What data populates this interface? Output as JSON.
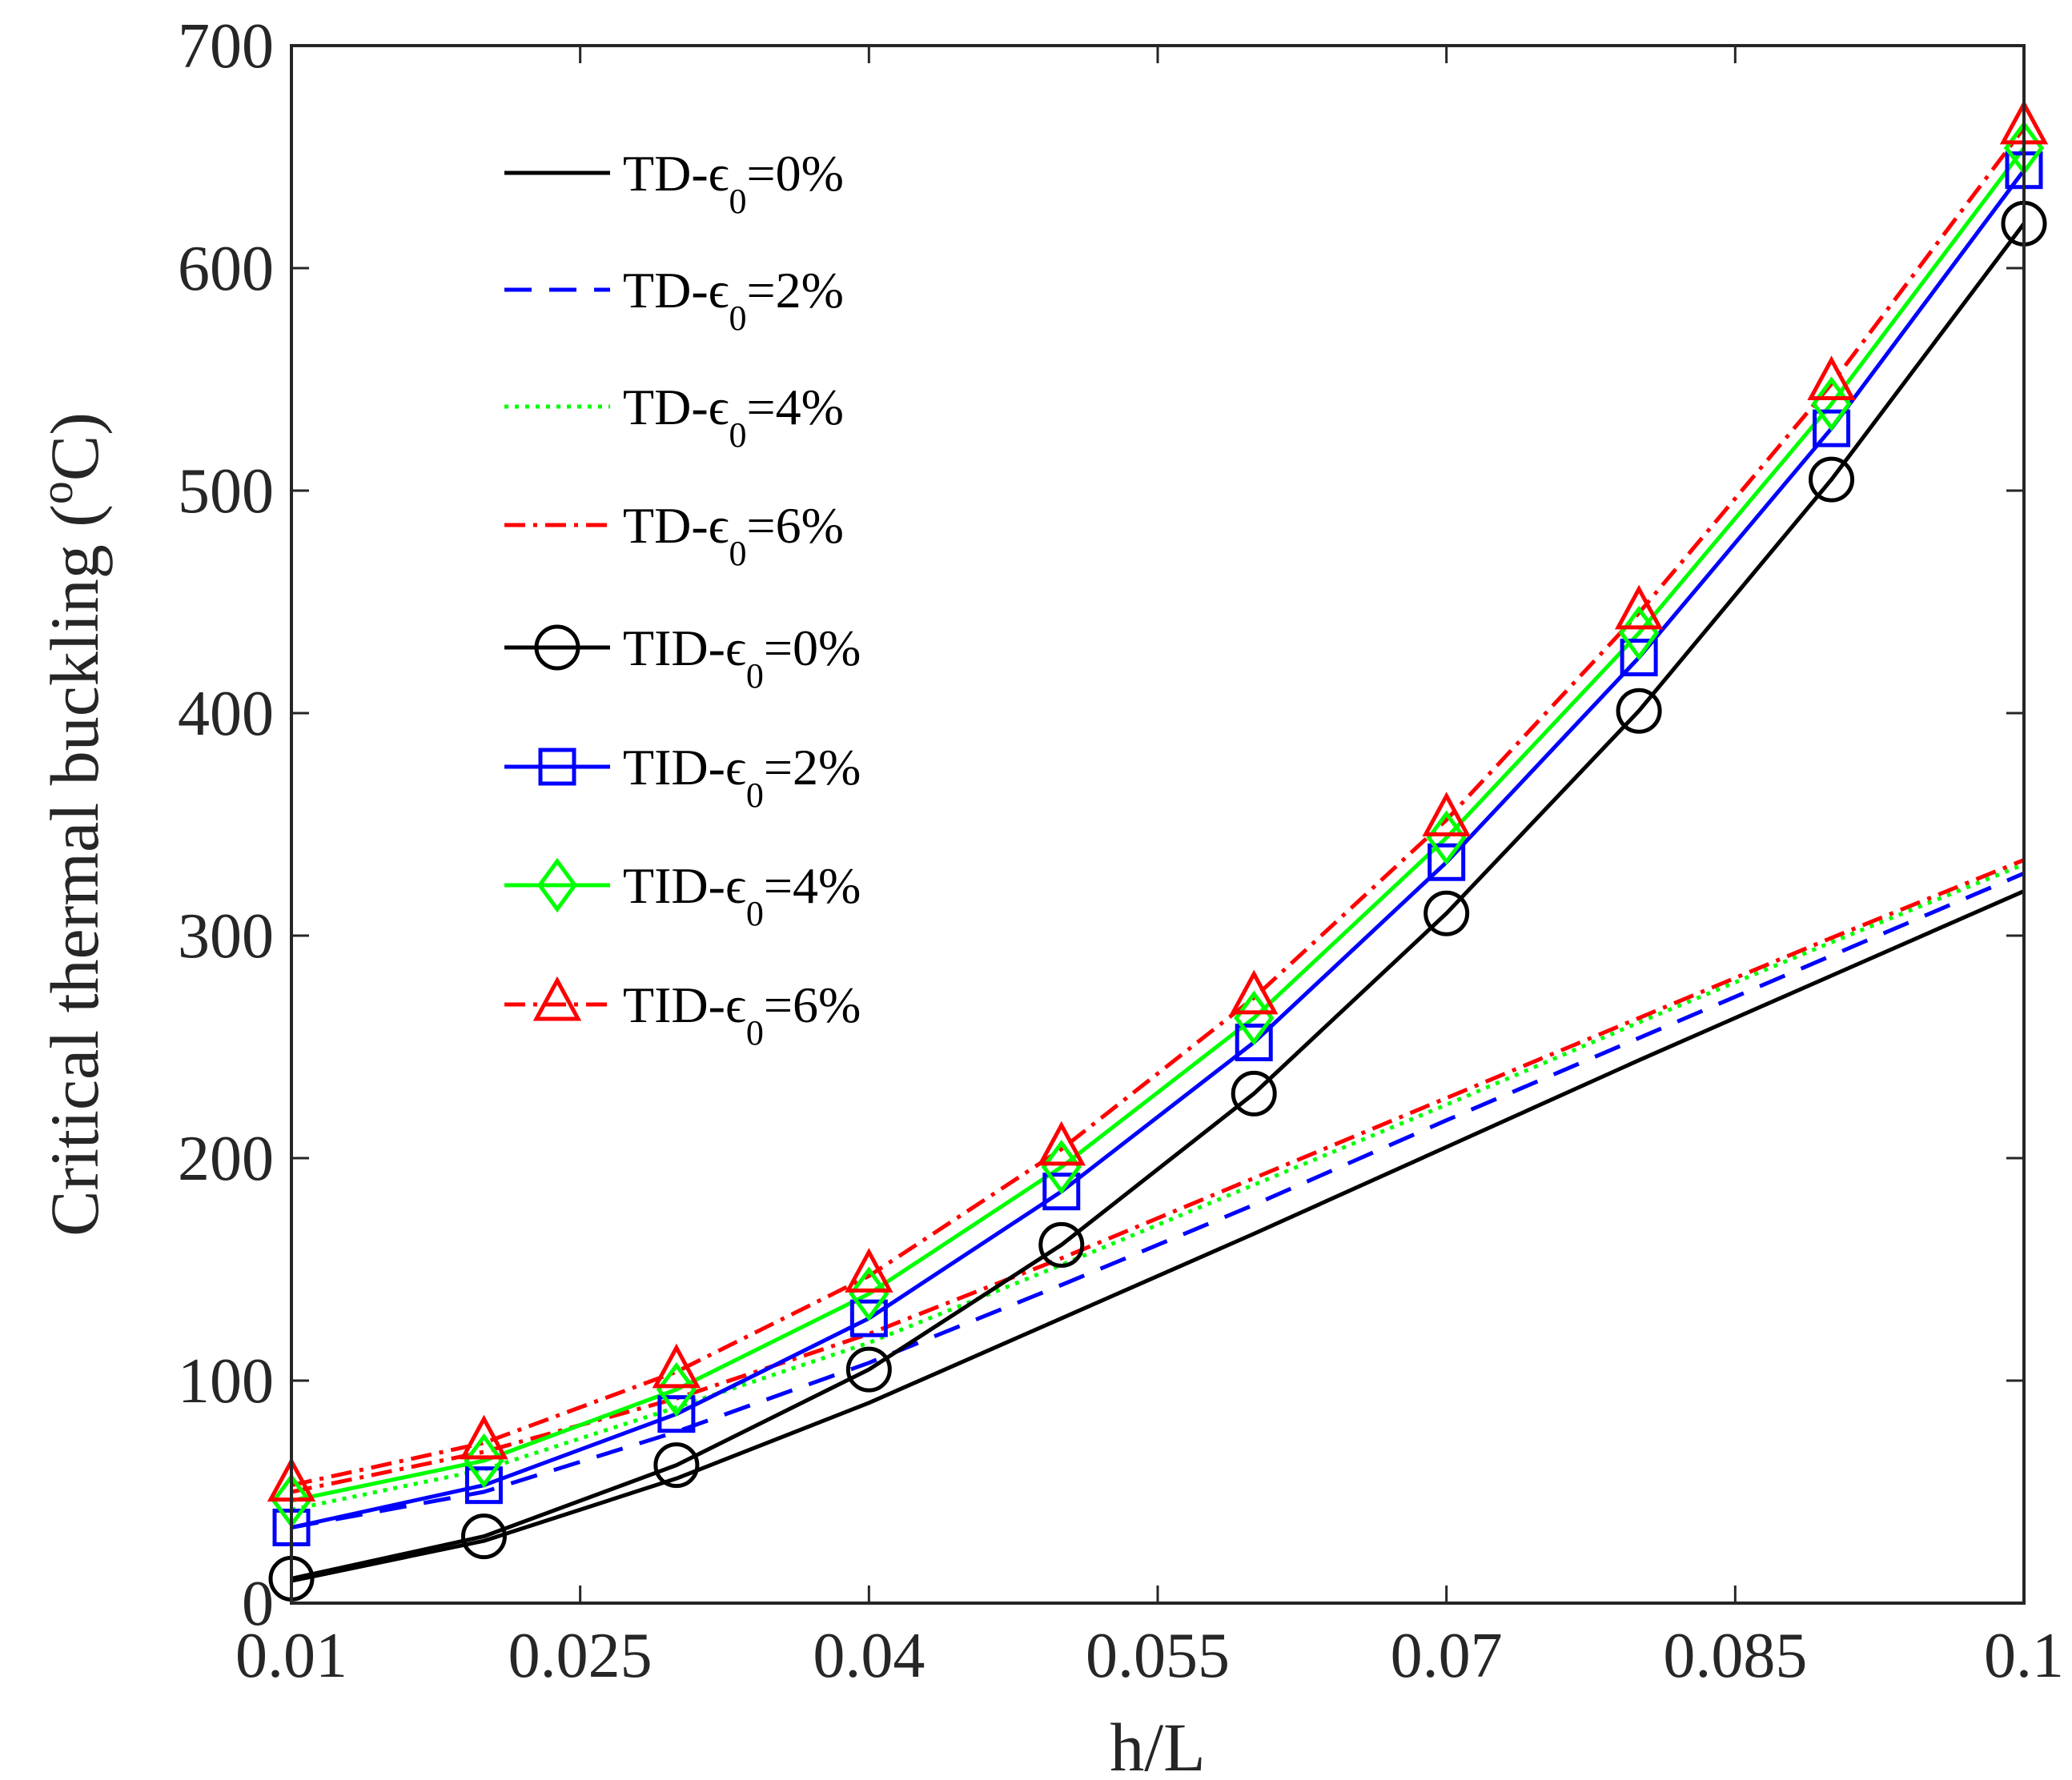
{
  "chart_data": {
    "type": "line",
    "title": "",
    "xlabel": "h/L",
    "ylabel_main": "Critical thermal buckling (",
    "ylabel_sup": "o",
    "ylabel_end": "C)",
    "xlim": [
      0.01,
      0.1
    ],
    "ylim": [
      0,
      700
    ],
    "xticks": [
      0.01,
      0.025,
      0.04,
      0.055,
      0.07,
      0.085,
      0.1
    ],
    "xtick_labels": [
      "0.01",
      "0.025",
      "0.04",
      "0.055",
      "0.07",
      "0.085",
      "0.1"
    ],
    "yticks": [
      0,
      100,
      200,
      300,
      400,
      500,
      600,
      700
    ],
    "ytick_labels": [
      "0",
      "100",
      "200",
      "300",
      "400",
      "500",
      "600",
      "700"
    ],
    "legend_position": "top-left",
    "x": [
      0.01,
      0.02,
      0.03,
      0.04,
      0.05,
      0.06,
      0.07,
      0.08,
      0.09,
      0.1
    ],
    "series": [
      {
        "prefix": "TD-",
        "eps": "0",
        "pct": "=0%",
        "color": "#000000",
        "dash": "",
        "marker": "none",
        "values": [
          10,
          28,
          56,
          90,
          128,
          166,
          205,
          244,
          282,
          320
        ]
      },
      {
        "prefix": "TD-",
        "eps": "0",
        "pct": "=2%",
        "color": "#0000ff",
        "dash": "34,22",
        "marker": "none",
        "values": [
          34,
          50,
          77,
          108,
          143,
          179,
          217,
          254,
          291,
          328
        ]
      },
      {
        "prefix": "TD-",
        "eps": "0",
        "pct": "=4%",
        "color": "#00ff00",
        "dash": "5,8",
        "marker": "none",
        "values": [
          42,
          60,
          88,
          117,
          152,
          188,
          224,
          261,
          297,
          332
        ]
      },
      {
        "prefix": "TD-",
        "eps": "0",
        "pct": "=6%",
        "color": "#ff0000",
        "dash": "26,10,5,10",
        "marker": "none",
        "values": [
          50,
          68,
          92,
          121,
          155,
          191,
          227,
          263,
          299,
          334
        ]
      },
      {
        "prefix": "TID-",
        "eps": "0",
        "pct": "=0%",
        "color": "#000000",
        "dash": "",
        "marker": "circle",
        "values": [
          11,
          30,
          62,
          105,
          161,
          229,
          310,
          401,
          505,
          620
        ]
      },
      {
        "prefix": "TID-",
        "eps": "0",
        "pct": "=2%",
        "color": "#0000ff",
        "dash": "",
        "marker": "square",
        "values": [
          34,
          53,
          85,
          128,
          185,
          252,
          333,
          425,
          528,
          644
        ]
      },
      {
        "prefix": "TID-",
        "eps": "0",
        "pct": "=4%",
        "color": "#00ff00",
        "dash": "",
        "marker": "diamond",
        "values": [
          46,
          64,
          96,
          139,
          196,
          263,
          344,
          436,
          539,
          654
        ]
      },
      {
        "prefix": "TID-",
        "eps": "0",
        "pct": "=6%",
        "color": "#ff0000",
        "dash": "26,10,5,10",
        "marker": "triangle",
        "values": [
          53,
          72,
          104,
          147,
          204,
          272,
          352,
          445,
          548,
          663
        ]
      }
    ]
  }
}
